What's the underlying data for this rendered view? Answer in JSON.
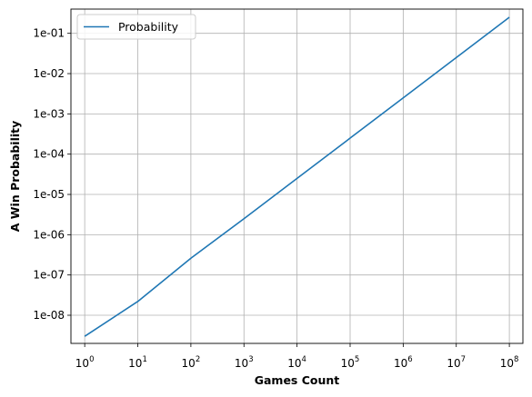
{
  "chart_data": {
    "type": "line",
    "title": "",
    "xlabel": "Games Count",
    "ylabel": "A Win Probability",
    "xscale": "log",
    "yscale": "log",
    "x_ticks": [
      {
        "value": 1,
        "base": "10",
        "exp": "0"
      },
      {
        "value": 10,
        "base": "10",
        "exp": "1"
      },
      {
        "value": 100,
        "base": "10",
        "exp": "2"
      },
      {
        "value": 1000,
        "base": "10",
        "exp": "3"
      },
      {
        "value": 10000,
        "base": "10",
        "exp": "4"
      },
      {
        "value": 100000,
        "base": "10",
        "exp": "5"
      },
      {
        "value": 1000000,
        "base": "10",
        "exp": "6"
      },
      {
        "value": 10000000,
        "base": "10",
        "exp": "7"
      },
      {
        "value": 100000000,
        "base": "10",
        "exp": "8"
      }
    ],
    "y_ticks": [
      {
        "value": 1e-08,
        "label": "1e-08"
      },
      {
        "value": 1e-07,
        "label": "1e-07"
      },
      {
        "value": 1e-06,
        "label": "1e-06"
      },
      {
        "value": 1e-05,
        "label": "1e-05"
      },
      {
        "value": 0.0001,
        "label": "1e-04"
      },
      {
        "value": 0.001,
        "label": "1e-03"
      },
      {
        "value": 0.01,
        "label": "1e-02"
      },
      {
        "value": 0.1,
        "label": "1e-01"
      }
    ],
    "xlim": [
      0.55,
      180000000
    ],
    "ylim": [
      2e-09,
      0.4
    ],
    "grid": true,
    "legend": {
      "position": "top-left"
    },
    "series": [
      {
        "name": " Probability",
        "color": "#1f77b4",
        "x": [
          1,
          10,
          100,
          1000,
          10000,
          100000,
          1000000,
          10000000,
          100000000
        ],
        "y": [
          3e-09,
          2.2e-08,
          2.6e-07,
          2.5e-06,
          2.5e-05,
          0.00025,
          0.0025,
          0.025,
          0.25
        ]
      }
    ]
  }
}
